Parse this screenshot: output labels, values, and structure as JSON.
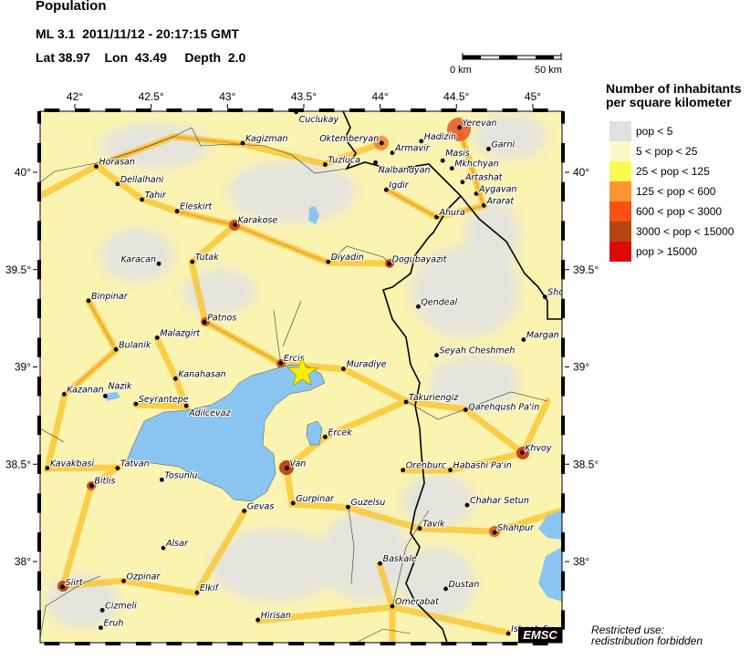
{
  "header": {
    "title": "Population",
    "event_line": "ML 3.1  2011/11/12 - 20:17:15 GMT",
    "location_line": "Lat 38.97    Lon  43.49     Depth  2.0"
  },
  "epicenter": {
    "lat": 38.97,
    "lon": 43.49,
    "magnitude": "ML 3.1",
    "depth": 2.0,
    "marker": "star-icon",
    "color": "#ffee00"
  },
  "scale_bar": {
    "start_label": "0 km",
    "end_label": "50 km"
  },
  "axes": {
    "lon_ticks": [
      42,
      42.5,
      43,
      43.5,
      44,
      44.5,
      45
    ],
    "lon_labels": [
      "42°",
      "42.5°",
      "43°",
      "43.5°",
      "44°",
      "44.5°",
      "45°"
    ],
    "lat_ticks": [
      40,
      39.5,
      39,
      38.5,
      38
    ],
    "lat_labels": [
      "40°",
      "39.5°",
      "39°",
      "38.5°",
      "38°"
    ]
  },
  "legend": {
    "title_line1": "Number of inhabitants",
    "title_line2": "per square kilometer",
    "items": [
      {
        "label": "pop < 5",
        "color": "#e0e0e0"
      },
      {
        "label": "5 < pop < 25",
        "color": "#fafac8"
      },
      {
        "label": "25 < pop < 125",
        "color": "#fafa50"
      },
      {
        "label": "125 < pop < 600",
        "color": "#fa9632"
      },
      {
        "label": "600 < pop < 3000",
        "color": "#fa5014"
      },
      {
        "label": "3000 < pop < 15000",
        "color": "#b4460f"
      },
      {
        "label": "pop > 15000",
        "color": "#dc0a0a"
      }
    ]
  },
  "logo": "EMSC",
  "restricted_line1": "Restricted use:",
  "restricted_line2": "redistribution forbidden",
  "water_color": "#8ac4f0",
  "towns": [
    {
      "name": "Cuclukay",
      "lon": 43.45,
      "lat": 40.31
    },
    {
      "name": "Kagizman",
      "lon": 43.1,
      "lat": 40.15
    },
    {
      "name": "Horasan",
      "lon": 42.14,
      "lat": 40.03
    },
    {
      "name": "Dellalhani",
      "lon": 42.28,
      "lat": 39.94
    },
    {
      "name": "Tahir",
      "lon": 42.44,
      "lat": 39.86
    },
    {
      "name": "Eleskirt",
      "lon": 42.67,
      "lat": 39.8
    },
    {
      "name": "Karakose",
      "lon": 43.05,
      "lat": 39.73
    },
    {
      "name": "Tuzluca",
      "lon": 43.64,
      "lat": 40.04
    },
    {
      "name": "Karacan",
      "lon": 42.55,
      "lat": 39.53
    },
    {
      "name": "Tutak",
      "lon": 42.77,
      "lat": 39.54
    },
    {
      "name": "Diyadin",
      "lon": 43.66,
      "lat": 39.54
    },
    {
      "name": "Dogubayazit",
      "lon": 44.06,
      "lat": 39.53
    },
    {
      "name": "Igdir",
      "lon": 44.04,
      "lat": 39.91
    },
    {
      "name": "Oktemberyan",
      "lon": 44.01,
      "lat": 40.15
    },
    {
      "name": "Hadizin",
      "lon": 44.27,
      "lat": 40.16
    },
    {
      "name": "Yerevan",
      "lon": 44.52,
      "lat": 40.23
    },
    {
      "name": "Garni",
      "lon": 44.71,
      "lat": 40.12
    },
    {
      "name": "Armavir",
      "lon": 44.08,
      "lat": 40.1
    },
    {
      "name": "Nalbandyan",
      "lon": 43.97,
      "lat": 40.05
    },
    {
      "name": "Masis",
      "lon": 44.41,
      "lat": 40.06
    },
    {
      "name": "Mkhchyan",
      "lon": 44.47,
      "lat": 40.02
    },
    {
      "name": "Artashat",
      "lon": 44.54,
      "lat": 39.95
    },
    {
      "name": "Aygavan",
      "lon": 44.63,
      "lat": 39.89
    },
    {
      "name": "Ararat",
      "lon": 44.68,
      "lat": 39.83
    },
    {
      "name": "Ahura",
      "lon": 44.37,
      "lat": 39.77
    },
    {
      "name": "Qendeal",
      "lon": 44.25,
      "lat": 39.31
    },
    {
      "name": "Sho",
      "lon": 45.08,
      "lat": 39.36
    },
    {
      "name": "Margan",
      "lon": 44.94,
      "lat": 39.14
    },
    {
      "name": "Seyah Cheshmeh",
      "lon": 44.37,
      "lat": 39.06
    },
    {
      "name": "Muradiye",
      "lon": 43.76,
      "lat": 38.99
    },
    {
      "name": "Takuriengiz",
      "lon": 44.17,
      "lat": 38.82
    },
    {
      "name": "Qarehqush Pa'in",
      "lon": 44.56,
      "lat": 38.78
    },
    {
      "name": "Ercek",
      "lon": 43.64,
      "lat": 38.64
    },
    {
      "name": "Khvoy",
      "lon": 44.93,
      "lat": 38.56
    },
    {
      "name": "Orenburc",
      "lon": 44.15,
      "lat": 38.47
    },
    {
      "name": "Habashi Pa'in",
      "lon": 44.46,
      "lat": 38.47
    },
    {
      "name": "Binpinar",
      "lon": 42.09,
      "lat": 39.34
    },
    {
      "name": "Patnos",
      "lon": 42.85,
      "lat": 39.23
    },
    {
      "name": "Malazgirt",
      "lon": 42.54,
      "lat": 39.15
    },
    {
      "name": "Bulanik",
      "lon": 42.27,
      "lat": 39.09
    },
    {
      "name": "Ercis",
      "lon": 43.35,
      "lat": 39.02
    },
    {
      "name": "Kanahasan",
      "lon": 42.66,
      "lat": 38.94
    },
    {
      "name": "Kazanan",
      "lon": 41.93,
      "lat": 38.86
    },
    {
      "name": "Nazik",
      "lon": 42.2,
      "lat": 38.85
    },
    {
      "name": "Seyrantepe",
      "lon": 42.4,
      "lat": 38.81
    },
    {
      "name": "Adilcevaz",
      "lon": 42.73,
      "lat": 38.8
    },
    {
      "name": "Van",
      "lon": 43.39,
      "lat": 38.48
    },
    {
      "name": "Kavakbasi",
      "lon": 41.82,
      "lat": 38.48
    },
    {
      "name": "Tatvan",
      "lon": 42.28,
      "lat": 38.48
    },
    {
      "name": "Tosunlu",
      "lon": 42.57,
      "lat": 38.42
    },
    {
      "name": "Bitlis",
      "lon": 42.11,
      "lat": 38.39
    },
    {
      "name": "Gevas",
      "lon": 43.11,
      "lat": 38.26
    },
    {
      "name": "Gurpinar",
      "lon": 43.43,
      "lat": 38.3
    },
    {
      "name": "Guzelsu",
      "lon": 43.79,
      "lat": 38.28
    },
    {
      "name": "Tavik",
      "lon": 44.26,
      "lat": 38.17
    },
    {
      "name": "Chahar Setun",
      "lon": 44.57,
      "lat": 38.29
    },
    {
      "name": "Shahpur",
      "lon": 44.75,
      "lat": 38.15
    },
    {
      "name": "Alsar",
      "lon": 42.58,
      "lat": 38.07
    },
    {
      "name": "Baskale",
      "lon": 44.0,
      "lat": 37.99
    },
    {
      "name": "Ozpinar",
      "lon": 42.32,
      "lat": 37.9
    },
    {
      "name": "Siirt",
      "lon": 41.92,
      "lat": 37.87
    },
    {
      "name": "Dustan",
      "lon": 44.43,
      "lat": 37.86
    },
    {
      "name": "Elkif",
      "lon": 42.8,
      "lat": 37.84
    },
    {
      "name": "Cizmeli",
      "lon": 42.18,
      "lat": 37.75
    },
    {
      "name": "Omerabat",
      "lon": 44.08,
      "lat": 37.77
    },
    {
      "name": "Hirisan",
      "lon": 43.2,
      "lat": 37.7
    },
    {
      "name": "Eruh",
      "lon": 42.17,
      "lat": 37.66
    },
    {
      "name": "Ishgeh Su",
      "lon": 44.84,
      "lat": 37.63
    }
  ]
}
